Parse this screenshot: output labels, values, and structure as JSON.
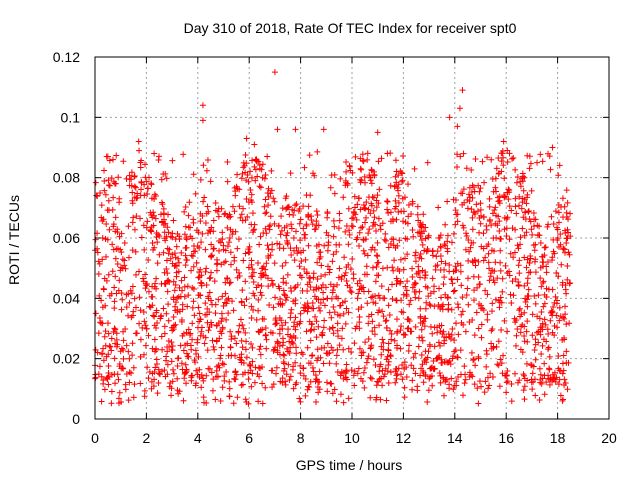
{
  "chart_data": {
    "type": "scatter",
    "title": "Day 310 of 2018, Rate Of TEC Index for receiver spt0",
    "xlabel": "GPS time / hours",
    "ylabel": "ROTI / TECUs",
    "xlim": [
      0,
      20
    ],
    "ylim": [
      0,
      0.12
    ],
    "xticks": [
      0,
      2,
      4,
      6,
      8,
      10,
      12,
      14,
      16,
      18,
      20
    ],
    "xtick_labels": [
      "0",
      "2",
      "4",
      "6",
      "8",
      "10",
      "12",
      "14",
      "16",
      "18",
      "20"
    ],
    "yticks": [
      0,
      0.02,
      0.04,
      0.06,
      0.08,
      0.1,
      0.12
    ],
    "ytick_labels": [
      "0",
      "0.02",
      "0.04",
      "0.06",
      "0.08",
      "0.1",
      "0.12"
    ],
    "grid": true,
    "marker": "plus",
    "color": "#ff0000",
    "series": [
      {
        "name": "ROTI",
        "x_range": [
          0,
          18.5
        ],
        "typical_min": 0.005,
        "typical_max": 0.085,
        "peaks": [
          {
            "x": 0.3,
            "y": 0.06
          },
          {
            "x": 0.5,
            "y": 0.087
          },
          {
            "x": 0.7,
            "y": 0.086
          },
          {
            "x": 1.7,
            "y": 0.092
          },
          {
            "x": 2.3,
            "y": 0.088
          },
          {
            "x": 4.2,
            "y": 0.104
          },
          {
            "x": 4.2,
            "y": 0.099
          },
          {
            "x": 5.9,
            "y": 0.093
          },
          {
            "x": 6.2,
            "y": 0.091
          },
          {
            "x": 6.7,
            "y": 0.087
          },
          {
            "x": 7.0,
            "y": 0.115
          },
          {
            "x": 7.1,
            "y": 0.096
          },
          {
            "x": 7.8,
            "y": 0.096
          },
          {
            "x": 8.9,
            "y": 0.096
          },
          {
            "x": 11.0,
            "y": 0.095
          },
          {
            "x": 13.8,
            "y": 0.1
          },
          {
            "x": 14.1,
            "y": 0.097
          },
          {
            "x": 14.2,
            "y": 0.103
          },
          {
            "x": 14.3,
            "y": 0.109
          },
          {
            "x": 15.9,
            "y": 0.092
          },
          {
            "x": 17.2,
            "y": 0.085
          },
          {
            "x": 17.8,
            "y": 0.09
          }
        ]
      }
    ]
  }
}
